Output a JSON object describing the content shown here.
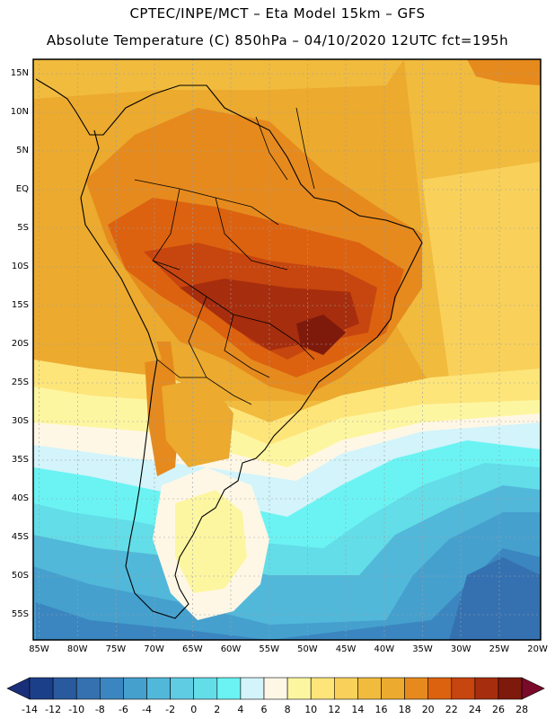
{
  "title": {
    "line1": "CPTEC/INPE/MCT –  Eta Model 15km – GFS",
    "line2": "Absolute Temperature (C) 850hPa – 04/10/2020 12UTC fct=195h"
  },
  "axes": {
    "lat_labels": [
      "15N",
      "10N",
      "5N",
      "EQ",
      "5S",
      "10S",
      "15S",
      "20S",
      "25S",
      "30S",
      "35S",
      "40S",
      "45S",
      "50S",
      "55S"
    ],
    "lon_labels": [
      "85W",
      "80W",
      "75W",
      "70W",
      "65W",
      "60W",
      "55W",
      "50W",
      "45W",
      "40W",
      "35W",
      "30W",
      "25W",
      "20W"
    ]
  },
  "colorbar": {
    "labels": [
      "-14",
      "-12",
      "-10",
      "-8",
      "-6",
      "-4",
      "-2",
      "0",
      "2",
      "4",
      "6",
      "8",
      "10",
      "12",
      "14",
      "16",
      "18",
      "20",
      "22",
      "24",
      "26",
      "28"
    ],
    "colors": [
      "#1c3f8a",
      "#2a5a9e",
      "#3571b0",
      "#3b86c0",
      "#45a0ce",
      "#52b8da",
      "#5fcce4",
      "#63dde8",
      "#6bf3f3",
      "#d2f4fa",
      "#fff7e6",
      "#fdf6a1",
      "#fde57a",
      "#f9d15a",
      "#f1bb3e",
      "#ecaa2e",
      "#e68a1d",
      "#dc6210",
      "#c7450e",
      "#a62d0d",
      "#7e1a0c"
    ],
    "under_color": "#1a2f7a",
    "over_color": "#7a0a2a"
  },
  "colors": {
    "ocean_south_deep": "#2f7fc0",
    "land_border": "#000000",
    "gridline": "#9aa0a6"
  }
}
